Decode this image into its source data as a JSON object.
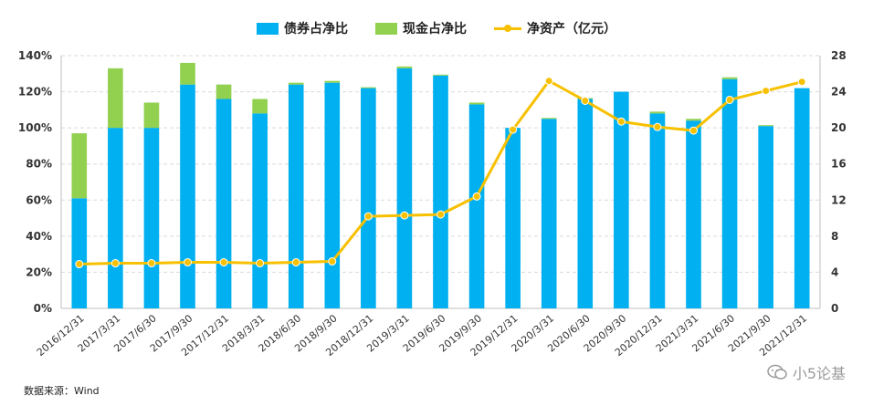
{
  "legend": {
    "bonds": "债券占净比",
    "cash": "现金占净比",
    "nav": "净资产（亿元）"
  },
  "colors": {
    "bonds": "#00b0f0",
    "cash": "#92d050",
    "nav": "#f7c000"
  },
  "source": "数据来源：Wind",
  "watermark": "小5论基",
  "chart_data": {
    "type": "bar",
    "categories": [
      "2016/12/31",
      "2017/3/31",
      "2017/6/30",
      "2017/9/30",
      "2017/12/31",
      "2018/3/31",
      "2018/6/30",
      "2018/9/30",
      "2018/12/31",
      "2019/3/31",
      "2019/6/30",
      "2019/9/30",
      "2019/12/31",
      "2020/3/31",
      "2020/6/30",
      "2020/9/30",
      "2020/12/31",
      "2021/3/31",
      "2021/6/30",
      "2021/9/30",
      "2021/12/31"
    ],
    "stacked": true,
    "series": [
      {
        "name": "债券占净比",
        "axis": "left",
        "unit": "%",
        "values": [
          61,
          100,
          100,
          124,
          116,
          108,
          124,
          125,
          122,
          133,
          129,
          113,
          100,
          105,
          116,
          120,
          108,
          104,
          127,
          101,
          122
        ]
      },
      {
        "name": "现金占净比",
        "axis": "left",
        "unit": "%",
        "values": [
          36,
          33,
          14,
          12,
          8,
          8,
          1,
          1,
          0.5,
          1,
          0.5,
          1,
          0,
          0.5,
          0.5,
          0,
          1,
          1,
          1,
          0.5,
          0
        ]
      },
      {
        "name": "净资产（亿元）",
        "type": "line",
        "axis": "right",
        "values": [
          4.9,
          5.0,
          5.0,
          5.1,
          5.1,
          5.0,
          5.1,
          5.2,
          10.2,
          10.3,
          10.4,
          12.4,
          19.8,
          25.2,
          23.0,
          20.7,
          20.1,
          19.7,
          23.1,
          24.1,
          25.1
        ]
      }
    ],
    "left_axis": {
      "ylim": [
        0,
        140
      ],
      "ticks": [
        "0%",
        "20%",
        "40%",
        "60%",
        "80%",
        "100%",
        "120%",
        "140%"
      ]
    },
    "right_axis": {
      "ylim": [
        0,
        28
      ],
      "ticks": [
        "0",
        "4",
        "8",
        "12",
        "16",
        "20",
        "24",
        "28"
      ]
    },
    "grid": true,
    "legend_position": "top"
  }
}
